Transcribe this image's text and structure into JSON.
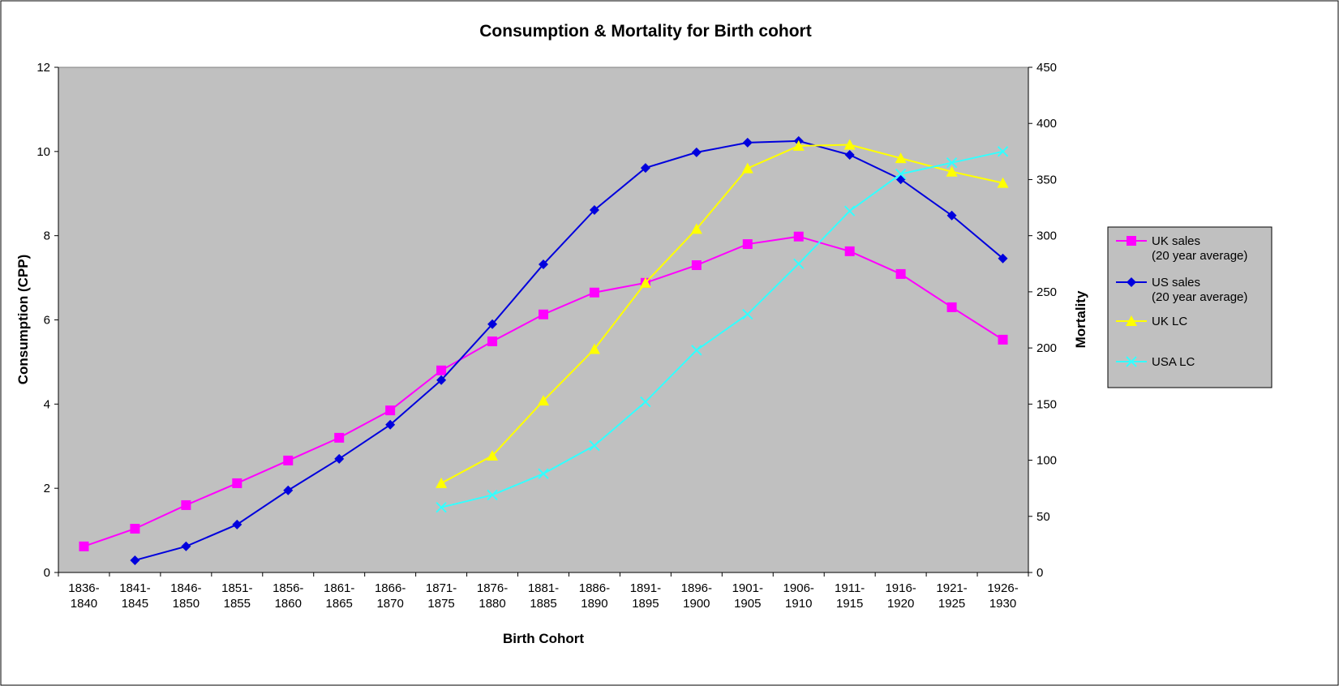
{
  "chart_data": {
    "type": "line",
    "title": "Consumption & Mortality for Birth cohort",
    "x_label": "Birth Cohort",
    "y_label": "Consumption (CPP)",
    "y2_label": "Mortality",
    "categories": [
      "1836-1840",
      "1841-1845",
      "1846-1850",
      "1851-1855",
      "1856-1860",
      "1861-1865",
      "1866-1870",
      "1871-1875",
      "1876-1880",
      "1881-1885",
      "1886-1890",
      "1891-1895",
      "1896-1900",
      "1901-1905",
      "1906-1910",
      "1911-1915",
      "1916-1920",
      "1921-1925",
      "1926-1930"
    ],
    "ylim": [
      0,
      12
    ],
    "yticks": [
      0,
      2,
      4,
      6,
      8,
      10,
      12
    ],
    "y2lim": [
      0,
      450
    ],
    "y2ticks": [
      0,
      50,
      100,
      150,
      200,
      250,
      300,
      350,
      400,
      450
    ],
    "plot_background": "#c0c0c0",
    "legend": "right",
    "series": [
      {
        "name": "UK sales (20 year average)",
        "color": "#ff00ff",
        "marker": "square",
        "values": [
          0.62,
          1.04,
          1.6,
          2.12,
          2.66,
          3.2,
          3.85,
          4.8,
          5.49,
          6.13,
          6.65,
          6.88,
          7.3,
          7.8,
          7.98,
          7.63,
          7.09,
          6.3,
          5.53
        ]
      },
      {
        "name": "US sales (20 year average)",
        "color": "#0000dd",
        "marker": "diamond",
        "values": [
          null,
          0.29,
          0.62,
          1.14,
          1.95,
          2.7,
          3.51,
          4.57,
          5.9,
          7.32,
          8.61,
          9.61,
          9.98,
          10.21,
          10.25,
          9.92,
          9.34,
          8.48,
          7.46
        ]
      },
      {
        "name": "UK LC",
        "color": "#ffff00",
        "marker": "triangle",
        "axis": "y2",
        "values": [
          null,
          null,
          null,
          null,
          null,
          null,
          null,
          79.5,
          104,
          153,
          199,
          258,
          306,
          360,
          380,
          381,
          369,
          357,
          347
        ]
      },
      {
        "name": "USA LC",
        "color": "#33ffff",
        "marker": "x",
        "axis": "y2",
        "values": [
          null,
          null,
          null,
          null,
          null,
          null,
          null,
          58,
          69,
          88,
          113,
          152,
          198,
          230,
          275,
          322,
          355,
          365,
          375
        ]
      }
    ]
  }
}
